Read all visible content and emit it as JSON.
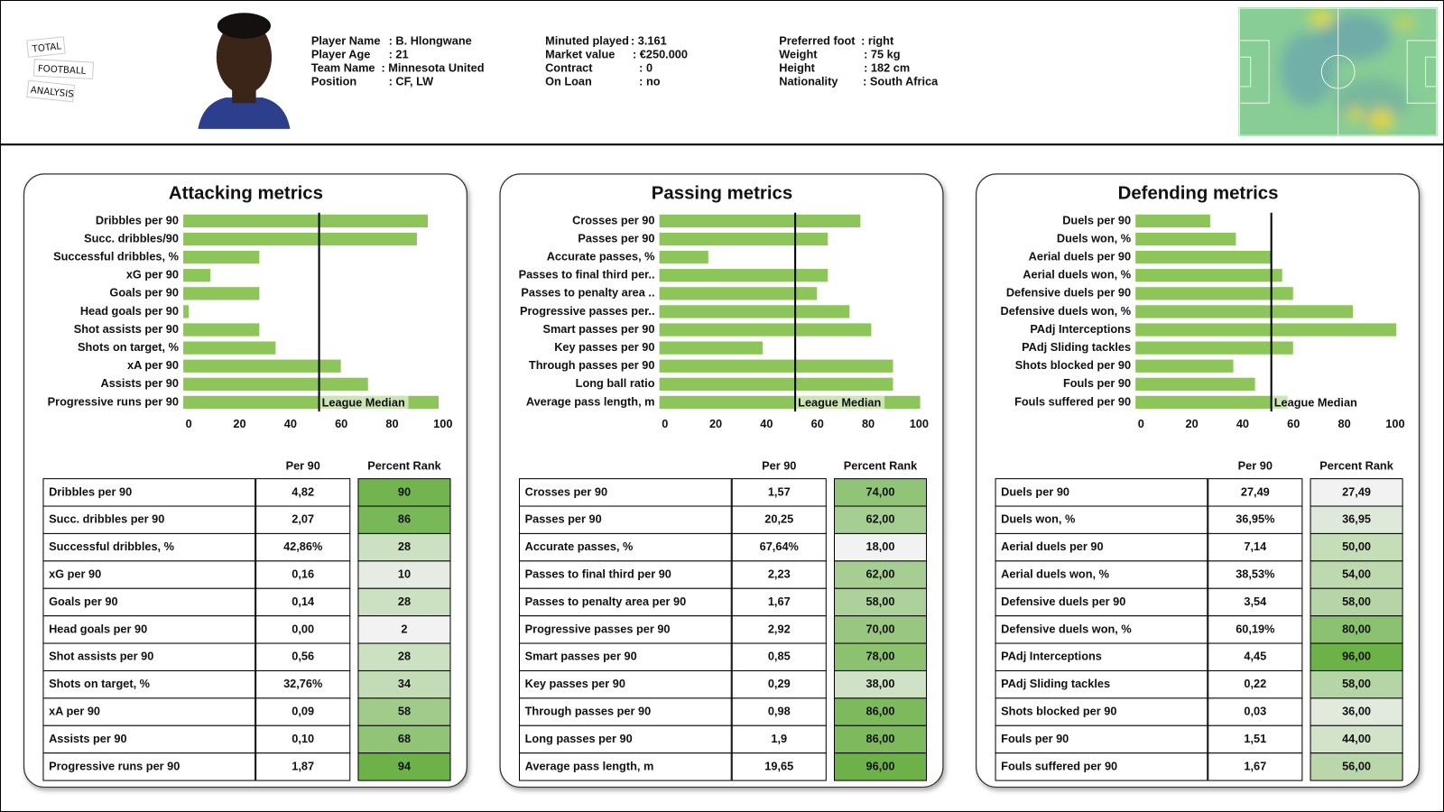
{
  "header": {
    "logo": [
      "TOTAL",
      "FOOTBALL",
      "ANALYSIS"
    ],
    "info": [
      [
        {
          "label": "Player Name",
          "value": ": B. Hlongwane"
        },
        {
          "label": "Player Age",
          "value": ": 21"
        },
        {
          "label": "Team Name",
          "value": ": Minnesota United"
        },
        {
          "label": "Position",
          "value": ": CF, LW"
        }
      ],
      [
        {
          "label": "Minuted played",
          "value": ": 3.161"
        },
        {
          "label": "Market value",
          "value": ": €250.000"
        },
        {
          "label": "Contract",
          "value": ": 0"
        },
        {
          "label": "On Loan",
          "value": ": no"
        }
      ],
      [
        {
          "label": "Preferred foot",
          "value": ": right"
        },
        {
          "label": "Weight",
          "value": ": 75 kg"
        },
        {
          "label": "Height",
          "value": ": 182 cm"
        },
        {
          "label": "Nationality",
          "value": ": South Africa"
        }
      ]
    ]
  },
  "chart_data": [
    {
      "type": "bar",
      "orientation": "horizontal",
      "title": "Attacking metrics",
      "categories": [
        "Dribbles per 90",
        "Succ. dribbles/90",
        "Successful dribbles, %",
        "xG per 90",
        "Goals per 90",
        "Head goals per 90",
        "Shot assists per 90",
        "Shots on target, %",
        "xA per 90",
        "Assists per 90",
        "Progressive runs per 90"
      ],
      "values": [
        90,
        86,
        28,
        10,
        28,
        2,
        28,
        34,
        58,
        68,
        94
      ],
      "color": "#8dc55a",
      "xlim": [
        0,
        100
      ],
      "xticks": [
        0,
        20,
        40,
        60,
        80,
        100
      ],
      "median": 50,
      "median_label": "League Median"
    },
    {
      "type": "bar",
      "orientation": "horizontal",
      "title": "Passing metrics",
      "categories": [
        "Crosses per 90",
        "Passes per 90",
        "Accurate passes, %",
        "Passes to final third per..",
        "Passes to penalty area ..",
        "Progressive passes per..",
        "Smart passes per 90",
        "Key passes per 90",
        "Through passes per 90",
        "Long ball ratio",
        "Average pass length, m"
      ],
      "values": [
        74,
        62,
        18,
        62,
        58,
        70,
        78,
        38,
        86,
        86,
        96
      ],
      "color": "#8dc55a",
      "xlim": [
        0,
        100
      ],
      "xticks": [
        0,
        20,
        40,
        60,
        80,
        100
      ],
      "median": 50,
      "median_label": "League Median"
    },
    {
      "type": "bar",
      "orientation": "horizontal",
      "title": "Defending metrics",
      "categories": [
        "Duels per 90",
        "Duels won, %",
        "Aerial duels per 90",
        "Aerial duels won, %",
        "Defensive duels per 90",
        "Defensive duels won, %",
        "PAdj Interceptions",
        "PAdj Sliding tackles",
        "Shots blocked per 90",
        "Fouls per 90",
        "Fouls suffered per 90"
      ],
      "values": [
        27.49,
        36.95,
        50,
        54,
        58,
        80,
        96,
        58,
        36,
        44,
        56
      ],
      "color": "#8dc55a",
      "xlim": [
        0,
        100
      ],
      "xticks": [
        0,
        20,
        40,
        60,
        80,
        100
      ],
      "median": 50,
      "median_label": "League Median"
    }
  ],
  "tables": [
    {
      "columns": [
        "Per 90",
        "Percent Rank"
      ],
      "rows": [
        [
          "Dribbles per 90",
          "4,82",
          "90"
        ],
        [
          "Succ. dribbles per 90",
          "2,07",
          "86"
        ],
        [
          "Successful dribbles, %",
          "42,86%",
          "28"
        ],
        [
          "xG per 90",
          "0,16",
          "10"
        ],
        [
          "Goals per 90",
          "0,14",
          "28"
        ],
        [
          "Head goals per 90",
          "0,00",
          "2"
        ],
        [
          "Shot assists per 90",
          "0,56",
          "28"
        ],
        [
          "Shots on target, %",
          "32,76%",
          "34"
        ],
        [
          "xA per 90",
          "0,09",
          "58"
        ],
        [
          "Assists per 90",
          "0,10",
          "68"
        ],
        [
          "Progressive runs per 90",
          "1,87",
          "94"
        ]
      ]
    },
    {
      "columns": [
        "Per 90",
        "Percent Rank"
      ],
      "rows": [
        [
          "Crosses per 90",
          "1,57",
          "74,00"
        ],
        [
          "Passes per 90",
          "20,25",
          "62,00"
        ],
        [
          "Accurate passes, %",
          "67,64%",
          "18,00"
        ],
        [
          "Passes to final third per 90",
          "2,23",
          "62,00"
        ],
        [
          "Passes to penalty area per 90",
          "1,67",
          "58,00"
        ],
        [
          "Progressive passes per 90",
          "2,92",
          "70,00"
        ],
        [
          "Smart passes per 90",
          "0,85",
          "78,00"
        ],
        [
          "Key passes per 90",
          "0,29",
          "38,00"
        ],
        [
          "Through passes per 90",
          "0,98",
          "86,00"
        ],
        [
          "Long passes per 90",
          "1,9",
          "86,00"
        ],
        [
          "Average pass length, m",
          "19,65",
          "96,00"
        ]
      ]
    },
    {
      "columns": [
        "Per 90",
        "Percent Rank"
      ],
      "rows": [
        [
          "Duels per 90",
          "27,49",
          "27,49"
        ],
        [
          "Duels won, %",
          "36,95%",
          "36,95"
        ],
        [
          "Aerial duels per 90",
          "7,14",
          "50,00"
        ],
        [
          "Aerial duels won, %",
          "38,53%",
          "54,00"
        ],
        [
          "Defensive duels per 90",
          "3,54",
          "58,00"
        ],
        [
          "Defensive duels won, %",
          "60,19%",
          "80,00"
        ],
        [
          "PAdj Interceptions",
          "4,45",
          "96,00"
        ],
        [
          "PAdj Sliding tackles",
          "0,22",
          "58,00"
        ],
        [
          "Shots blocked per 90",
          "0,03",
          "36,00"
        ],
        [
          "Fouls per 90",
          "1,51",
          "44,00"
        ],
        [
          "Fouls suffered per 90",
          "1,67",
          "56,00"
        ]
      ]
    }
  ]
}
